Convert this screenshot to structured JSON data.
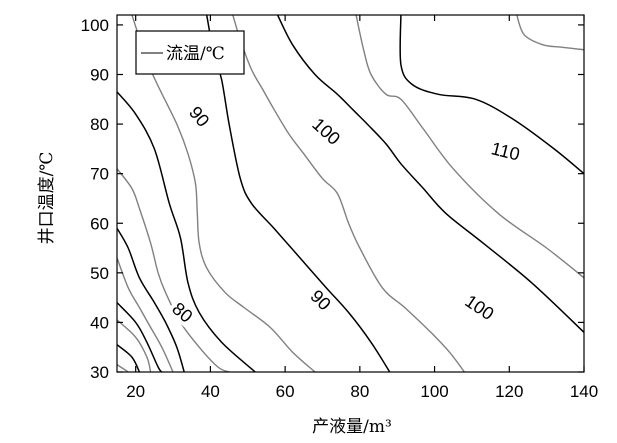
{
  "chart_data": {
    "type": "contour",
    "xlabel": "产液量/m³",
    "ylabel": "井口温度/℃",
    "xlim": [
      15,
      140
    ],
    "ylim": [
      30,
      102
    ],
    "xticks": [
      "20",
      "40",
      "60",
      "80",
      "100",
      "120",
      "140"
    ],
    "yticks": [
      "30",
      "40",
      "50",
      "60",
      "70",
      "80",
      "90",
      "100"
    ],
    "legend": {
      "label": "流温/℃",
      "position": "top-left"
    },
    "major_color": "#000000",
    "minor_color": "#808080",
    "contours": [
      {
        "level": 110,
        "major": true,
        "label": "110",
        "points": [
          [
            91,
            102
          ],
          [
            91,
            92
          ],
          [
            94,
            88
          ],
          [
            101,
            86
          ],
          [
            111,
            85
          ],
          [
            121,
            81
          ],
          [
            132,
            75
          ],
          [
            140,
            70
          ]
        ]
      },
      {
        "level": 100,
        "major": true,
        "label": "100",
        "points": [
          [
            58,
            102
          ],
          [
            62,
            96
          ],
          [
            68,
            90
          ],
          [
            74,
            86
          ],
          [
            78,
            83
          ],
          [
            82,
            80
          ],
          [
            87,
            76
          ],
          [
            91,
            72
          ],
          [
            97,
            67
          ],
          [
            103,
            62
          ],
          [
            113,
            56
          ],
          [
            126,
            48
          ],
          [
            140,
            38
          ]
        ]
      },
      {
        "level": 90,
        "major": true,
        "label": "90",
        "points": [
          [
            39,
            102
          ],
          [
            41,
            94
          ],
          [
            43,
            89
          ],
          [
            45,
            80
          ],
          [
            48,
            69
          ],
          [
            51,
            64
          ],
          [
            57,
            59
          ],
          [
            64,
            53
          ],
          [
            71,
            47
          ],
          [
            77,
            42
          ],
          [
            83,
            36
          ],
          [
            88,
            30
          ]
        ]
      },
      {
        "level": 80,
        "major": true,
        "label": "80",
        "points": [
          [
            15,
            86.5
          ],
          [
            20,
            82
          ],
          [
            25,
            75
          ],
          [
            29,
            64
          ],
          [
            32,
            57
          ],
          [
            34,
            48
          ],
          [
            37,
            42
          ],
          [
            43,
            36
          ],
          [
            52,
            30
          ]
        ]
      },
      {
        "level": 70,
        "major": true,
        "label": "",
        "points": [
          [
            15,
            59
          ],
          [
            18,
            55
          ],
          [
            21,
            49
          ],
          [
            25,
            44
          ],
          [
            28,
            40
          ],
          [
            31,
            35
          ],
          [
            33,
            30
          ]
        ]
      },
      {
        "level": 60,
        "major": true,
        "label": "",
        "points": [
          [
            15,
            44
          ],
          [
            20,
            40
          ],
          [
            23,
            36
          ],
          [
            26,
            31
          ],
          [
            27,
            30
          ]
        ]
      },
      {
        "level": 50,
        "major": true,
        "label": "",
        "points": [
          [
            15,
            35.5
          ],
          [
            19,
            33
          ],
          [
            21,
            30
          ]
        ]
      },
      {
        "level": 115,
        "major": false,
        "label": "",
        "points": [
          [
            122,
            102
          ],
          [
            124,
            98
          ],
          [
            129,
            96
          ],
          [
            134,
            95.5
          ],
          [
            140,
            95
          ]
        ]
      },
      {
        "level": 105,
        "major": false,
        "label": "",
        "points": [
          [
            79,
            102
          ],
          [
            81,
            95
          ],
          [
            83,
            90
          ],
          [
            87,
            86
          ],
          [
            91,
            85
          ],
          [
            97,
            79
          ],
          [
            105,
            71
          ],
          [
            117,
            62
          ],
          [
            130,
            55
          ],
          [
            140,
            49
          ]
        ]
      },
      {
        "level": 95,
        "major": false,
        "label": "",
        "points": [
          [
            46,
            102
          ],
          [
            48,
            97
          ],
          [
            51,
            91
          ],
          [
            54,
            87
          ],
          [
            57,
            83
          ],
          [
            61,
            78
          ],
          [
            65,
            74
          ],
          [
            70,
            69
          ],
          [
            74,
            66
          ],
          [
            77,
            60
          ],
          [
            80,
            55
          ],
          [
            86,
            47
          ],
          [
            92,
            43
          ],
          [
            99,
            38
          ],
          [
            104,
            34
          ],
          [
            108,
            30
          ]
        ]
      },
      {
        "level": 85,
        "major": false,
        "label": "",
        "points": [
          [
            19,
            102
          ],
          [
            24,
            91
          ],
          [
            31,
            80
          ],
          [
            34,
            74
          ],
          [
            36,
            68
          ],
          [
            36.5,
            62
          ],
          [
            37,
            56
          ],
          [
            39,
            51
          ],
          [
            44,
            46
          ],
          [
            49,
            43
          ],
          [
            56,
            39
          ],
          [
            62,
            34
          ],
          [
            68,
            30
          ]
        ]
      },
      {
        "level": 75,
        "major": false,
        "label": "",
        "points": [
          [
            15,
            71
          ],
          [
            19,
            67
          ],
          [
            21,
            63
          ],
          [
            24,
            56
          ],
          [
            26,
            50
          ],
          [
            28,
            46
          ],
          [
            32,
            40
          ],
          [
            37,
            35
          ],
          [
            42,
            31
          ],
          [
            45,
            30
          ]
        ]
      },
      {
        "level": 65,
        "major": false,
        "label": "",
        "points": [
          [
            15,
            53
          ],
          [
            18,
            47
          ],
          [
            21,
            43
          ],
          [
            24,
            39
          ],
          [
            27,
            35
          ],
          [
            30,
            30
          ]
        ]
      },
      {
        "level": 55,
        "major": false,
        "label": "",
        "points": [
          [
            15,
            40.5
          ],
          [
            20,
            37
          ],
          [
            23,
            33
          ],
          [
            24,
            30
          ]
        ]
      },
      {
        "level": 45,
        "major": false,
        "label": "",
        "points": [
          [
            15,
            31.5
          ],
          [
            17,
            30.5
          ],
          [
            18,
            30
          ]
        ]
      }
    ],
    "labels": [
      {
        "text": "110",
        "x": 119,
        "y": 74.5,
        "angle": 14
      },
      {
        "text": "100",
        "x": 71,
        "y": 78.5,
        "angle": 42
      },
      {
        "text": "100",
        "x": 112,
        "y": 43,
        "angle": 34
      },
      {
        "text": "90",
        "x": 37,
        "y": 81.5,
        "angle": 50
      },
      {
        "text": "90",
        "x": 69.5,
        "y": 44.5,
        "angle": 45
      },
      {
        "text": "80",
        "x": 32.5,
        "y": 42,
        "angle": 40
      }
    ]
  }
}
